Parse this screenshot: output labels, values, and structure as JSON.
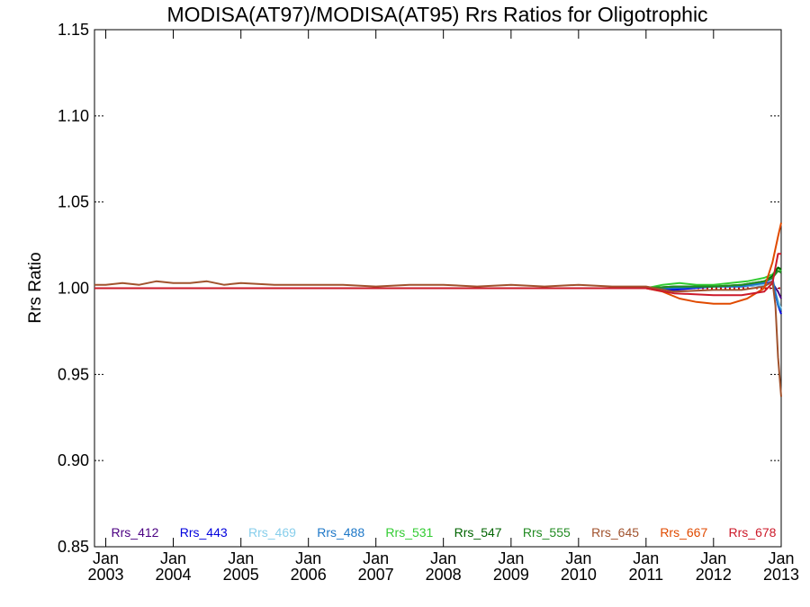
{
  "chart_data": {
    "type": "line",
    "title": "MODISA(AT97)/MODISA(AT95)  Rrs Ratios for Oligotrophic",
    "xlabel": "",
    "ylabel": "Rrs Ratio",
    "xlim": [
      "2002-11-01",
      "2013-01-01"
    ],
    "ylim": [
      0.85,
      1.15
    ],
    "x_ticks": [
      {
        "month": "Jan",
        "year": "2003",
        "date": "2003-01-01"
      },
      {
        "month": "Jan",
        "year": "2004",
        "date": "2004-01-01"
      },
      {
        "month": "Jan",
        "year": "2005",
        "date": "2005-01-01"
      },
      {
        "month": "Jan",
        "year": "2006",
        "date": "2006-01-01"
      },
      {
        "month": "Jan",
        "year": "2007",
        "date": "2007-01-01"
      },
      {
        "month": "Jan",
        "year": "2008",
        "date": "2008-01-01"
      },
      {
        "month": "Jan",
        "year": "2009",
        "date": "2009-01-01"
      },
      {
        "month": "Jan",
        "year": "2010",
        "date": "2010-01-01"
      },
      {
        "month": "Jan",
        "year": "2011",
        "date": "2011-01-01"
      },
      {
        "month": "Jan",
        "year": "2012",
        "date": "2012-01-01"
      },
      {
        "month": "Jan",
        "year": "2013",
        "date": "2013-01-01"
      }
    ],
    "y_ticks": [
      "0.85",
      "0.90",
      "0.95",
      "1.00",
      "1.05",
      "1.10",
      "1.15"
    ],
    "grid": false,
    "reference_line": {
      "y": 1.0,
      "style": "dotted",
      "color": "#cc0000"
    },
    "legend_placement": "bottom",
    "series": [
      {
        "name": "Rrs_412",
        "color": "#4b0082",
        "x": [
          "2002-11-01",
          "2011-01-01",
          "2011-06-01",
          "2012-01-01",
          "2012-06-01",
          "2012-10-01",
          "2012-11-15",
          "2012-12-15",
          "2013-01-01"
        ],
        "y": [
          1.0,
          1.0,
          1.0,
          1.001,
          1.001,
          1.002,
          1.003,
          0.998,
          0.994
        ]
      },
      {
        "name": "Rrs_443",
        "color": "#0000dd",
        "x": [
          "2002-11-01",
          "2011-01-01",
          "2011-06-01",
          "2012-01-01",
          "2012-06-01",
          "2012-10-01",
          "2012-11-15",
          "2012-12-15",
          "2013-01-01"
        ],
        "y": [
          1.0,
          1.0,
          0.999,
          1.001,
          1.001,
          1.002,
          1.004,
          0.99,
          0.985
        ]
      },
      {
        "name": "Rrs_469",
        "color": "#87ceeb",
        "x": [
          "2002-11-01",
          "2011-01-01",
          "2011-06-01",
          "2012-01-01",
          "2012-06-01",
          "2012-10-01",
          "2012-11-15",
          "2012-12-15",
          "2013-01-01"
        ],
        "y": [
          1.0,
          1.0,
          1.001,
          1.001,
          1.001,
          1.002,
          1.003,
          0.993,
          0.988
        ]
      },
      {
        "name": "Rrs_488",
        "color": "#1e78c8",
        "x": [
          "2002-11-01",
          "2011-01-01",
          "2011-06-01",
          "2012-01-01",
          "2012-06-01",
          "2012-10-01",
          "2012-11-15",
          "2012-12-15",
          "2013-01-01"
        ],
        "y": [
          1.0,
          1.0,
          1.0,
          1.001,
          1.001,
          1.003,
          1.006,
          0.99,
          0.987
        ]
      },
      {
        "name": "Rrs_531",
        "color": "#33cc33",
        "x": [
          "2002-11-01",
          "2011-01-01",
          "2011-04-01",
          "2011-07-01",
          "2011-10-01",
          "2012-01-01",
          "2012-04-01",
          "2012-07-01",
          "2012-10-01",
          "2012-11-15",
          "2012-12-15",
          "2013-01-01"
        ],
        "y": [
          1.0,
          1.0,
          1.002,
          1.003,
          1.002,
          1.002,
          1.003,
          1.004,
          1.006,
          1.008,
          1.012,
          1.01
        ]
      },
      {
        "name": "Rrs_547",
        "color": "#006400",
        "x": [
          "2002-11-01",
          "2011-01-01",
          "2011-06-01",
          "2012-01-01",
          "2012-06-01",
          "2012-10-01",
          "2012-11-15",
          "2012-12-15",
          "2013-01-01"
        ],
        "y": [
          1.0,
          1.0,
          1.001,
          1.001,
          1.002,
          1.004,
          1.007,
          1.012,
          1.011
        ]
      },
      {
        "name": "Rrs_555",
        "color": "#228b22",
        "x": [
          "2002-11-01",
          "2011-01-01",
          "2011-06-01",
          "2012-01-01",
          "2012-06-01",
          "2012-10-01",
          "2012-11-15",
          "2012-12-15",
          "2013-01-01"
        ],
        "y": [
          1.0,
          1.0,
          1.001,
          1.001,
          1.002,
          1.004,
          1.006,
          1.01,
          1.009
        ]
      },
      {
        "name": "Rrs_645",
        "color": "#a0522d",
        "x": [
          "2002-11-01",
          "2003-01-01",
          "2003-04-01",
          "2003-07-01",
          "2003-10-01",
          "2004-01-01",
          "2004-04-01",
          "2004-07-01",
          "2004-10-01",
          "2005-01-01",
          "2005-07-01",
          "2006-01-01",
          "2006-07-01",
          "2007-01-01",
          "2007-07-01",
          "2008-01-01",
          "2008-07-01",
          "2009-01-01",
          "2009-07-01",
          "2010-01-01",
          "2010-07-01",
          "2011-01-01",
          "2011-06-01",
          "2012-01-01",
          "2012-06-01",
          "2012-10-01",
          "2012-11-15",
          "2012-12-01",
          "2012-12-15",
          "2013-01-01"
        ],
        "y": [
          1.002,
          1.002,
          1.003,
          1.002,
          1.004,
          1.003,
          1.003,
          1.004,
          1.002,
          1.003,
          1.002,
          1.002,
          1.002,
          1.001,
          1.002,
          1.002,
          1.001,
          1.002,
          1.001,
          1.002,
          1.001,
          1.001,
          0.998,
          0.999,
          0.999,
          1.001,
          1.004,
          0.99,
          0.96,
          0.937
        ]
      },
      {
        "name": "Rrs_667",
        "color": "#e04a00",
        "x": [
          "2002-11-01",
          "2011-01-01",
          "2011-04-01",
          "2011-07-01",
          "2011-10-01",
          "2012-01-01",
          "2012-04-01",
          "2012-07-01",
          "2012-10-01",
          "2012-11-15",
          "2012-12-15",
          "2013-01-01"
        ],
        "y": [
          1.0,
          1.0,
          0.998,
          0.994,
          0.992,
          0.991,
          0.991,
          0.994,
          1.0,
          1.015,
          1.03,
          1.038
        ]
      },
      {
        "name": "Rrs_678",
        "color": "#cc1a2a",
        "x": [
          "2002-11-01",
          "2011-01-01",
          "2011-06-01",
          "2012-01-01",
          "2012-06-01",
          "2012-10-01",
          "2012-11-15",
          "2012-12-15",
          "2013-01-01"
        ],
        "y": [
          1.0,
          1.0,
          0.997,
          0.996,
          0.996,
          0.998,
          1.003,
          1.02,
          1.02
        ]
      }
    ]
  }
}
